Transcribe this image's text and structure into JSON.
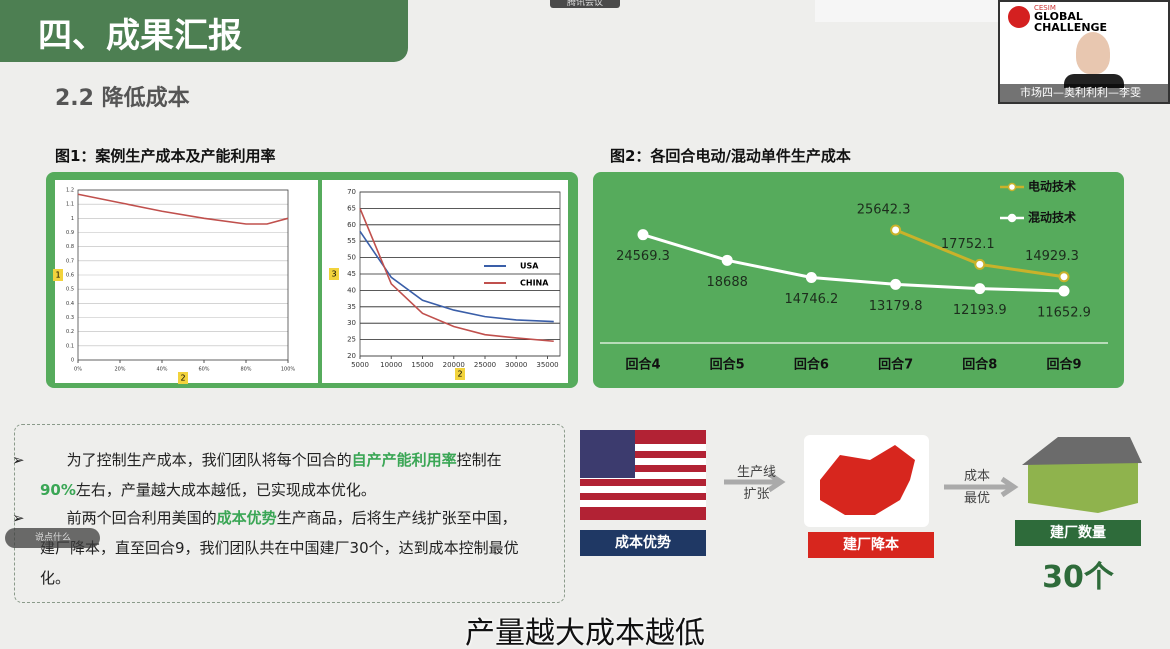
{
  "meeting": {
    "app_tag": "腾讯会议",
    "logo": {
      "brand": "CESIM",
      "line1": "GLOBAL",
      "line2": "CHALLENGE"
    },
    "participant": "市场四—奥利利利—李雯",
    "chat_hint": "说点什么",
    "caption": "产量越大成本越低"
  },
  "header": {
    "title": "四、成果汇报",
    "subtitle": "2.2 降低成本"
  },
  "figures": {
    "fig1_title": "图1：案例生产成本及产能利用率",
    "fig2_title": "图2：各回合电动/混动单件生产成本"
  },
  "chart_data": [
    {
      "type": "line",
      "x_label": "2",
      "y_label": "1",
      "x": [
        0,
        20,
        40,
        60,
        80,
        90,
        100
      ],
      "series": [
        {
          "color": "#c0504d",
          "values": [
            1.17,
            1.11,
            1.05,
            1.0,
            0.96,
            0.96,
            1.0
          ]
        }
      ],
      "xlim": [
        0,
        100
      ],
      "ylim": [
        0,
        1.2
      ],
      "xticks": [
        {
          "value": 0,
          "label": "0%"
        },
        {
          "value": 20,
          "label": "20%"
        },
        {
          "value": 40,
          "label": "40%"
        },
        {
          "value": 60,
          "label": "60%"
        },
        {
          "value": 80,
          "label": "80%"
        },
        {
          "value": 100,
          "label": "100%"
        }
      ],
      "yticks": [
        0,
        0.1,
        0.2,
        0.3,
        0.4,
        0.5,
        0.6,
        0.7,
        0.8,
        0.9,
        1,
        1.1,
        1.2
      ],
      "grid": true
    },
    {
      "type": "line",
      "x_label": "2",
      "y_label": "3",
      "x": [
        5000,
        10000,
        15000,
        20000,
        25000,
        30000,
        36000
      ],
      "series": [
        {
          "name": "USA",
          "color": "#3a5ea8",
          "values": [
            58,
            44,
            37,
            34,
            32,
            31,
            30.5
          ]
        },
        {
          "name": "CHINA",
          "color": "#c0504d",
          "values": [
            65,
            42,
            33,
            29,
            26.5,
            25.5,
            24.5
          ]
        }
      ],
      "xlim": [
        5000,
        37000
      ],
      "ylim": [
        20,
        70
      ],
      "xticks": [
        5000,
        10000,
        15000,
        20000,
        25000,
        30000,
        35000
      ],
      "yticks": [
        20,
        25,
        30,
        35,
        40,
        45,
        50,
        55,
        60,
        65,
        70
      ],
      "grid": true
    },
    {
      "type": "line",
      "categories": [
        "回合4",
        "回合5",
        "回合6",
        "回合7",
        "回合8",
        "回合9"
      ],
      "series": [
        {
          "name": "电动技术",
          "color": "#c9b22a",
          "values": [
            null,
            null,
            null,
            25642.3,
            17752.1,
            14929.3
          ]
        },
        {
          "name": "混动技术",
          "color": "#ffffff",
          "values": [
            24569.3,
            18688,
            14746.2,
            13179.8,
            12193.9,
            11652.9
          ]
        }
      ]
    }
  ],
  "bullets": [
    [
      "为了控制生产成本，我们团队将每个回合的",
      "自产产能利用率",
      "控制在",
      "90%",
      "左右，产量越大成本越低，已实现成本优化。"
    ],
    [
      "前两个回合利用美国的",
      "成本优势",
      "生产商品，后将生产线扩张至中国，建厂降本，直至回合9，我们团队共在中国建厂30个，达到成本控制最优化。"
    ]
  ],
  "flow": {
    "arrow1": [
      "生产线",
      "扩张"
    ],
    "arrow2": [
      "成本",
      "最优"
    ],
    "box1": "成本优势",
    "box2": "建厂降本",
    "box3": "建厂数量",
    "count": "30个"
  }
}
